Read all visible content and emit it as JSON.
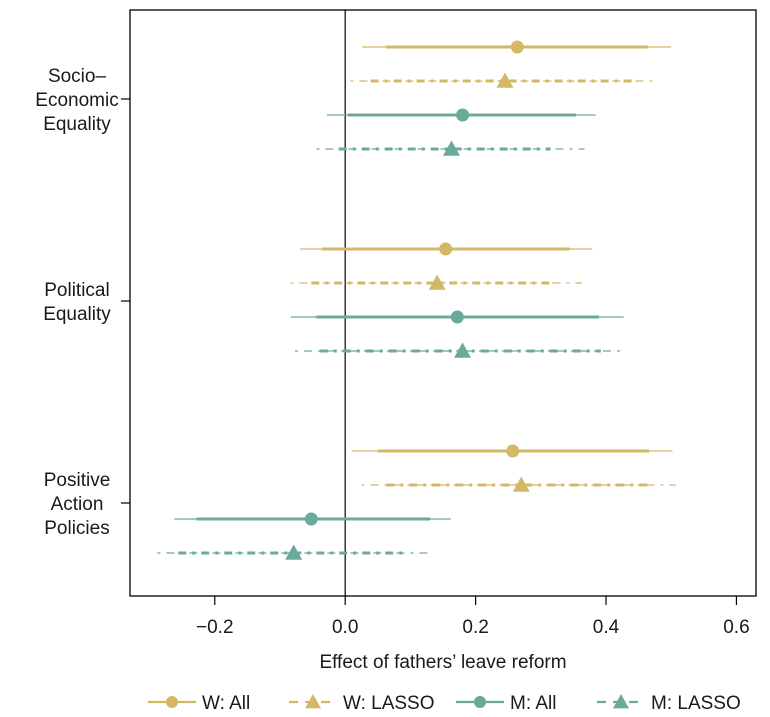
{
  "chart_data": {
    "type": "coefficient-plot",
    "xlabel": "Effect of fathers’ leave reform",
    "xlim": [
      -0.33,
      0.63
    ],
    "xticks": [
      -0.2,
      0.0,
      0.2,
      0.4,
      0.6
    ],
    "xtick_labels": [
      "−0.2",
      "0.0",
      "0.2",
      "0.4",
      "0.6"
    ],
    "zero_line": 0,
    "grid": false,
    "legend_position": "bottom",
    "colors": {
      "women": "#d4b866",
      "men": "#6aaa9b",
      "axis": "#000000"
    },
    "categories": [
      {
        "id": "socio",
        "lines": [
          "Socio–",
          "Economic",
          "Equality"
        ]
      },
      {
        "id": "political",
        "lines": [
          "Political",
          "Equality"
        ]
      },
      {
        "id": "positive",
        "lines": [
          "Positive",
          "Action",
          "Policies"
        ]
      }
    ],
    "series": [
      {
        "name": "W: All",
        "color": "#d4b866",
        "marker": "circle",
        "dashed": false
      },
      {
        "name": "W: LASSO",
        "color": "#d4b866",
        "marker": "triangle",
        "dashed": true
      },
      {
        "name": "M: All",
        "color": "#6aaa9b",
        "marker": "circle",
        "dashed": false
      },
      {
        "name": "M: LASSO",
        "color": "#6aaa9b",
        "marker": "triangle",
        "dashed": true
      }
    ],
    "estimates": [
      {
        "category": "socio",
        "series": "W: All",
        "est": 0.264,
        "ci90": [
          0.063,
          0.464
        ],
        "ci95": [
          0.026,
          0.5
        ]
      },
      {
        "category": "socio",
        "series": "W: LASSO",
        "est": 0.245,
        "ci90": [
          0.039,
          0.449
        ],
        "ci95": [
          0.008,
          0.48
        ]
      },
      {
        "category": "socio",
        "series": "M: All",
        "est": 0.18,
        "ci90": [
          0.004,
          0.354
        ],
        "ci95": [
          -0.028,
          0.384
        ]
      },
      {
        "category": "socio",
        "series": "M: LASSO",
        "est": 0.163,
        "ci90": [
          -0.01,
          0.315
        ],
        "ci95": [
          -0.044,
          0.367
        ]
      },
      {
        "category": "political",
        "series": "W: All",
        "est": 0.154,
        "ci90": [
          -0.035,
          0.344
        ],
        "ci95": [
          -0.069,
          0.379
        ]
      },
      {
        "category": "political",
        "series": "W: LASSO",
        "est": 0.141,
        "ci90": [
          -0.052,
          0.317
        ],
        "ci95": [
          -0.084,
          0.363
        ]
      },
      {
        "category": "political",
        "series": "M: All",
        "est": 0.172,
        "ci90": [
          -0.044,
          0.389
        ],
        "ci95": [
          -0.083,
          0.427
        ]
      },
      {
        "category": "political",
        "series": "M: LASSO",
        "est": 0.18,
        "ci90": [
          -0.039,
          0.392
        ],
        "ci95": [
          -0.077,
          0.429
        ]
      },
      {
        "category": "positive",
        "series": "W: All",
        "est": 0.257,
        "ci90": [
          0.05,
          0.466
        ],
        "ci95": [
          0.01,
          0.502
        ]
      },
      {
        "category": "positive",
        "series": "W: LASSO",
        "est": 0.27,
        "ci90": [
          0.063,
          0.469
        ],
        "ci95": [
          0.025,
          0.507
        ]
      },
      {
        "category": "positive",
        "series": "M: All",
        "est": -0.052,
        "ci90": [
          -0.228,
          0.13
        ],
        "ci95": [
          -0.262,
          0.162
        ]
      },
      {
        "category": "positive",
        "series": "M: LASSO",
        "est": -0.079,
        "ci90": [
          -0.256,
          0.094
        ],
        "ci95": [
          -0.288,
          0.133
        ]
      }
    ]
  }
}
